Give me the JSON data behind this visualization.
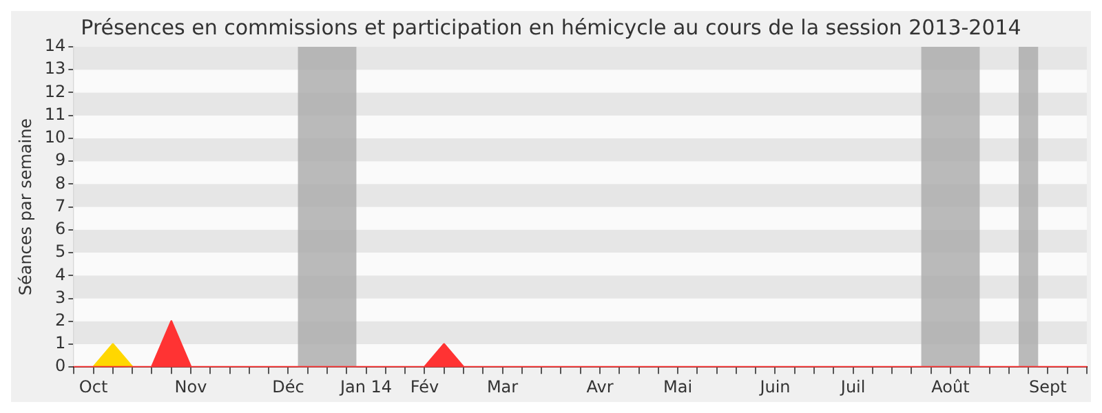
{
  "chart_data": {
    "type": "area",
    "title": "Présences en commissions et participation en hémicycle au cours de la session 2013-2014",
    "ylabel": "Séances par semaine",
    "categories": [
      null,
      "Oct",
      null,
      null,
      null,
      null,
      "Nov",
      null,
      null,
      null,
      null,
      "Déc",
      null,
      null,
      null,
      "Jan 14",
      null,
      null,
      "Fév",
      null,
      null,
      null,
      "Mar",
      null,
      null,
      null,
      null,
      "Avr",
      null,
      null,
      null,
      "Mai",
      null,
      null,
      null,
      null,
      "Juin",
      null,
      null,
      null,
      "Juil",
      null,
      null,
      null,
      null,
      "Août",
      null,
      null,
      null,
      null,
      "Sept",
      null,
      null
    ],
    "ylim": [
      0,
      14
    ],
    "yticks": [
      0,
      1,
      2,
      3,
      4,
      5,
      6,
      7,
      8,
      9,
      10,
      11,
      12,
      13,
      14
    ],
    "legend": false,
    "series": [
      {
        "color": "#ff3333",
        "values": [
          0,
          0,
          0,
          0,
          0,
          2,
          0,
          0,
          0,
          0,
          0,
          0,
          0,
          0,
          0,
          0,
          0,
          0,
          0,
          1,
          0,
          0,
          0,
          0,
          0,
          0,
          0,
          0,
          0,
          0,
          0,
          0,
          0,
          0,
          0,
          0,
          0,
          0,
          0,
          0,
          0,
          0,
          0,
          0,
          0,
          0,
          0,
          0,
          0,
          0,
          0,
          0,
          0
        ]
      },
      {
        "color": "#ffd700",
        "values": [
          null,
          0,
          1,
          0,
          null,
          null,
          null,
          null,
          null,
          null,
          null,
          null,
          null,
          null,
          null,
          null,
          null,
          null,
          null,
          null,
          null,
          null,
          null,
          null,
          null,
          null,
          null,
          null,
          null,
          null,
          null,
          null,
          null,
          null,
          null,
          null,
          null,
          null,
          null,
          null,
          null,
          null,
          null,
          null,
          null,
          null,
          null,
          null,
          null,
          null,
          null,
          null,
          null
        ]
      },
      {
        "color": "#33cc33",
        "values": [
          null,
          0,
          0.1,
          0,
          null,
          null,
          null,
          null,
          null,
          null,
          null,
          null,
          null,
          null,
          null,
          null,
          null,
          null,
          null,
          null,
          null,
          null,
          null,
          null,
          null,
          null,
          null,
          null,
          null,
          null,
          null,
          null,
          null,
          null,
          null,
          null,
          null,
          null,
          null,
          null,
          null,
          null,
          null,
          null,
          null,
          null,
          null,
          null,
          null,
          null,
          null,
          null,
          null
        ]
      }
    ]
  }
}
